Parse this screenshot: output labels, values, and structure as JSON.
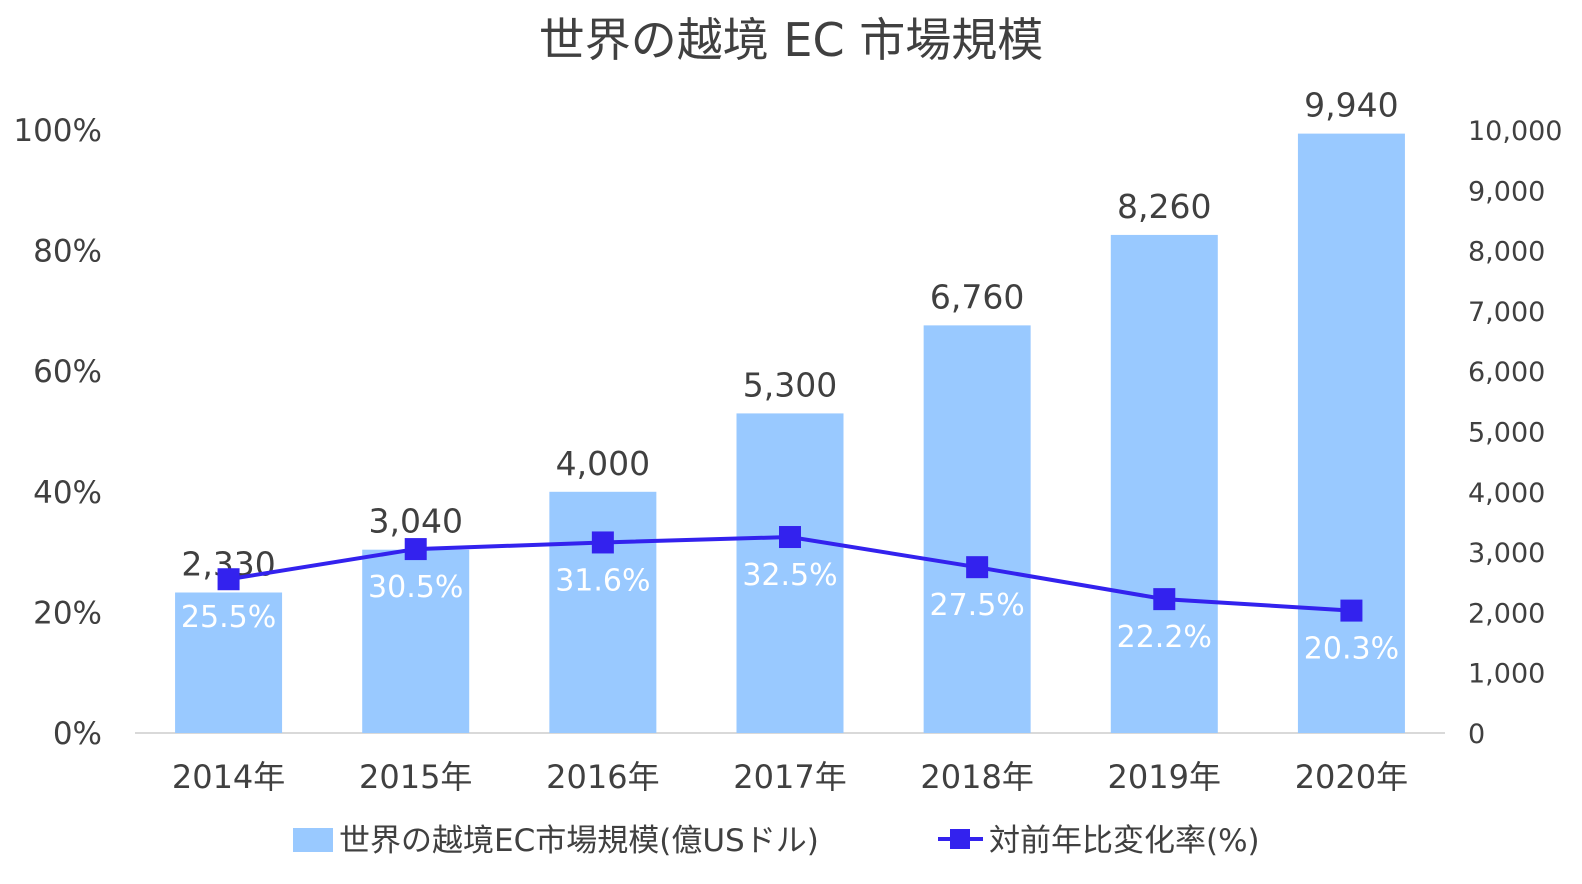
{
  "chart_data": {
    "type": "bar+line",
    "title": "世界の越境 EC 市場規模",
    "categories": [
      "2014年",
      "2015年",
      "2016年",
      "2017年",
      "2018年",
      "2019年",
      "2020年"
    ],
    "series": [
      {
        "name": "世界の越境EC市場規模(億USドル)",
        "type": "bar",
        "axis": "right",
        "color": "#99c9ff",
        "values": [
          2330,
          3040,
          4000,
          5300,
          6760,
          8260,
          9940
        ],
        "labels": [
          "2,330",
          "3,040",
          "4,000",
          "5,300",
          "6,760",
          "8,260",
          "9,940"
        ]
      },
      {
        "name": "対前年比変化率(%)",
        "type": "line",
        "axis": "left",
        "color": "#3322ee",
        "marker": "square",
        "values": [
          25.5,
          30.5,
          31.6,
          32.5,
          27.5,
          22.2,
          20.3
        ],
        "labels": [
          "25.5%",
          "30.5%",
          "31.6%",
          "32.5%",
          "27.5%",
          "22.2%",
          "20.3%"
        ]
      }
    ],
    "y_left": {
      "min": 0,
      "max": 100,
      "ticks": [
        0,
        20,
        40,
        60,
        80,
        100
      ],
      "tick_labels": [
        "0%",
        "20%",
        "40%",
        "60%",
        "80%",
        "100%"
      ]
    },
    "y_right": {
      "min": 0,
      "max": 10000,
      "ticks": [
        0,
        1000,
        2000,
        3000,
        4000,
        5000,
        6000,
        7000,
        8000,
        9000,
        10000
      ],
      "tick_labels": [
        "0",
        "1,000",
        "2,000",
        "3,000",
        "4,000",
        "5,000",
        "6,000",
        "7,000",
        "8,000",
        "9,000",
        "10,000"
      ]
    },
    "legend": "bottom",
    "grid": false
  }
}
